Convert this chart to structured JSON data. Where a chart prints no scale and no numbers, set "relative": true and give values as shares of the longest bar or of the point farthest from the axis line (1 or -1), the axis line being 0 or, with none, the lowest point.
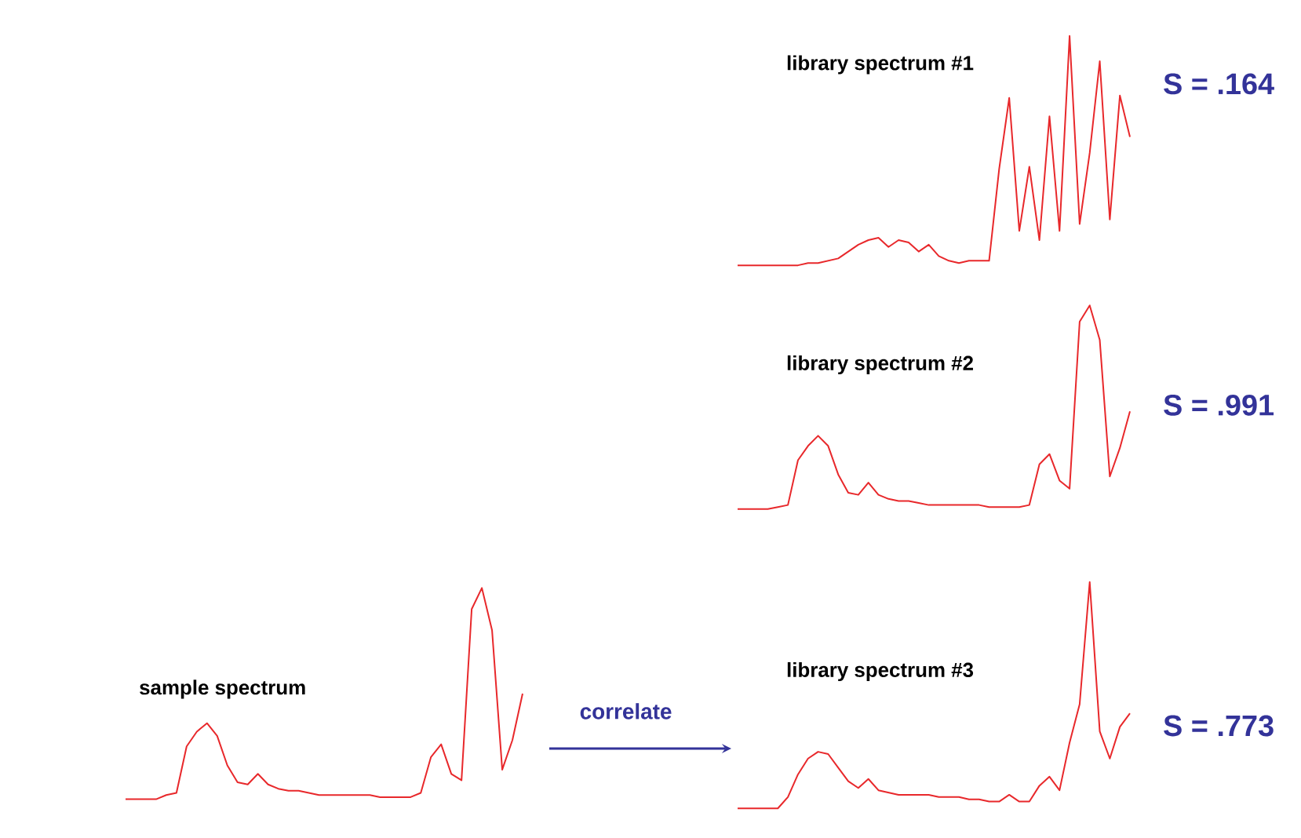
{
  "chart_data": [
    {
      "type": "line",
      "relative": true,
      "title": "library spectrum #1",
      "annotations": [
        "S = .164"
      ],
      "categories": [
        null,
        null,
        null,
        null,
        null,
        null,
        null,
        null,
        null,
        null,
        null,
        null,
        null,
        null,
        null,
        null,
        null,
        null,
        null,
        null,
        null,
        null,
        null,
        null,
        null,
        null,
        null,
        null,
        null,
        null,
        null,
        null,
        null,
        null,
        null,
        null,
        null,
        null,
        null,
        null
      ],
      "series": [
        {
          "color": "#e8282b",
          "values": [
            0,
            0,
            0,
            0,
            0,
            0,
            0,
            0.01,
            0.01,
            0.02,
            0.03,
            0.06,
            0.09,
            0.11,
            0.12,
            0.08,
            0.11,
            0.1,
            0.06,
            0.09,
            0.04,
            0.02,
            0.01,
            0.02,
            0.02,
            0.02,
            0.42,
            0.73,
            0.15,
            0.43,
            0.11,
            0.65,
            0.15,
            1,
            0.18,
            0.49,
            0.89,
            0.2,
            0.74,
            0.56
          ]
        }
      ]
    },
    {
      "type": "line",
      "relative": true,
      "title": "library spectrum #2",
      "annotations": [
        "S = .991"
      ],
      "categories": [
        null,
        null,
        null,
        null,
        null,
        null,
        null,
        null,
        null,
        null,
        null,
        null,
        null,
        null,
        null,
        null,
        null,
        null,
        null,
        null,
        null,
        null,
        null,
        null,
        null,
        null,
        null,
        null,
        null,
        null,
        null,
        null,
        null,
        null,
        null,
        null,
        null,
        null,
        null,
        null
      ],
      "series": [
        {
          "color": "#e8282b",
          "values": [
            0,
            0,
            0,
            0,
            0.01,
            0.02,
            0.24,
            0.31,
            0.36,
            0.31,
            0.17,
            0.08,
            0.07,
            0.13,
            0.07,
            0.05,
            0.04,
            0.04,
            0.03,
            0.02,
            0.02,
            0.02,
            0.02,
            0.02,
            0.02,
            0.01,
            0.01,
            0.01,
            0.01,
            0.02,
            0.22,
            0.27,
            0.14,
            0.1,
            0.92,
            1,
            0.83,
            0.16,
            0.3,
            0.48
          ]
        }
      ]
    },
    {
      "type": "line",
      "relative": true,
      "title": "sample spectrum",
      "annotations": [
        "correlate"
      ],
      "categories": [
        null,
        null,
        null,
        null,
        null,
        null,
        null,
        null,
        null,
        null,
        null,
        null,
        null,
        null,
        null,
        null,
        null,
        null,
        null,
        null,
        null,
        null,
        null,
        null,
        null,
        null,
        null,
        null,
        null,
        null,
        null,
        null,
        null,
        null,
        null,
        null,
        null,
        null,
        null,
        null
      ],
      "series": [
        {
          "color": "#e8282b",
          "values": [
            0,
            0,
            0,
            0,
            0.02,
            0.03,
            0.25,
            0.32,
            0.36,
            0.3,
            0.16,
            0.08,
            0.07,
            0.12,
            0.07,
            0.05,
            0.04,
            0.04,
            0.03,
            0.02,
            0.02,
            0.02,
            0.02,
            0.02,
            0.02,
            0.01,
            0.01,
            0.01,
            0.01,
            0.03,
            0.2,
            0.26,
            0.12,
            0.09,
            0.9,
            1,
            0.8,
            0.14,
            0.28,
            0.5
          ]
        }
      ]
    },
    {
      "type": "line",
      "relative": true,
      "title": "library spectrum #3",
      "annotations": [
        "S = .773"
      ],
      "categories": [
        null,
        null,
        null,
        null,
        null,
        null,
        null,
        null,
        null,
        null,
        null,
        null,
        null,
        null,
        null,
        null,
        null,
        null,
        null,
        null,
        null,
        null,
        null,
        null,
        null,
        null,
        null,
        null,
        null,
        null,
        null,
        null,
        null,
        null,
        null,
        null,
        null,
        null,
        null,
        null
      ],
      "series": [
        {
          "color": "#e8282b",
          "values": [
            0,
            0,
            0,
            0,
            0,
            0.05,
            0.15,
            0.22,
            0.25,
            0.24,
            0.18,
            0.12,
            0.09,
            0.13,
            0.08,
            0.07,
            0.06,
            0.06,
            0.06,
            0.06,
            0.05,
            0.05,
            0.05,
            0.04,
            0.04,
            0.03,
            0.03,
            0.06,
            0.03,
            0.03,
            0.1,
            0.14,
            0.08,
            0.29,
            0.46,
            1,
            0.34,
            0.22,
            0.36,
            0.42
          ]
        }
      ]
    }
  ]
}
